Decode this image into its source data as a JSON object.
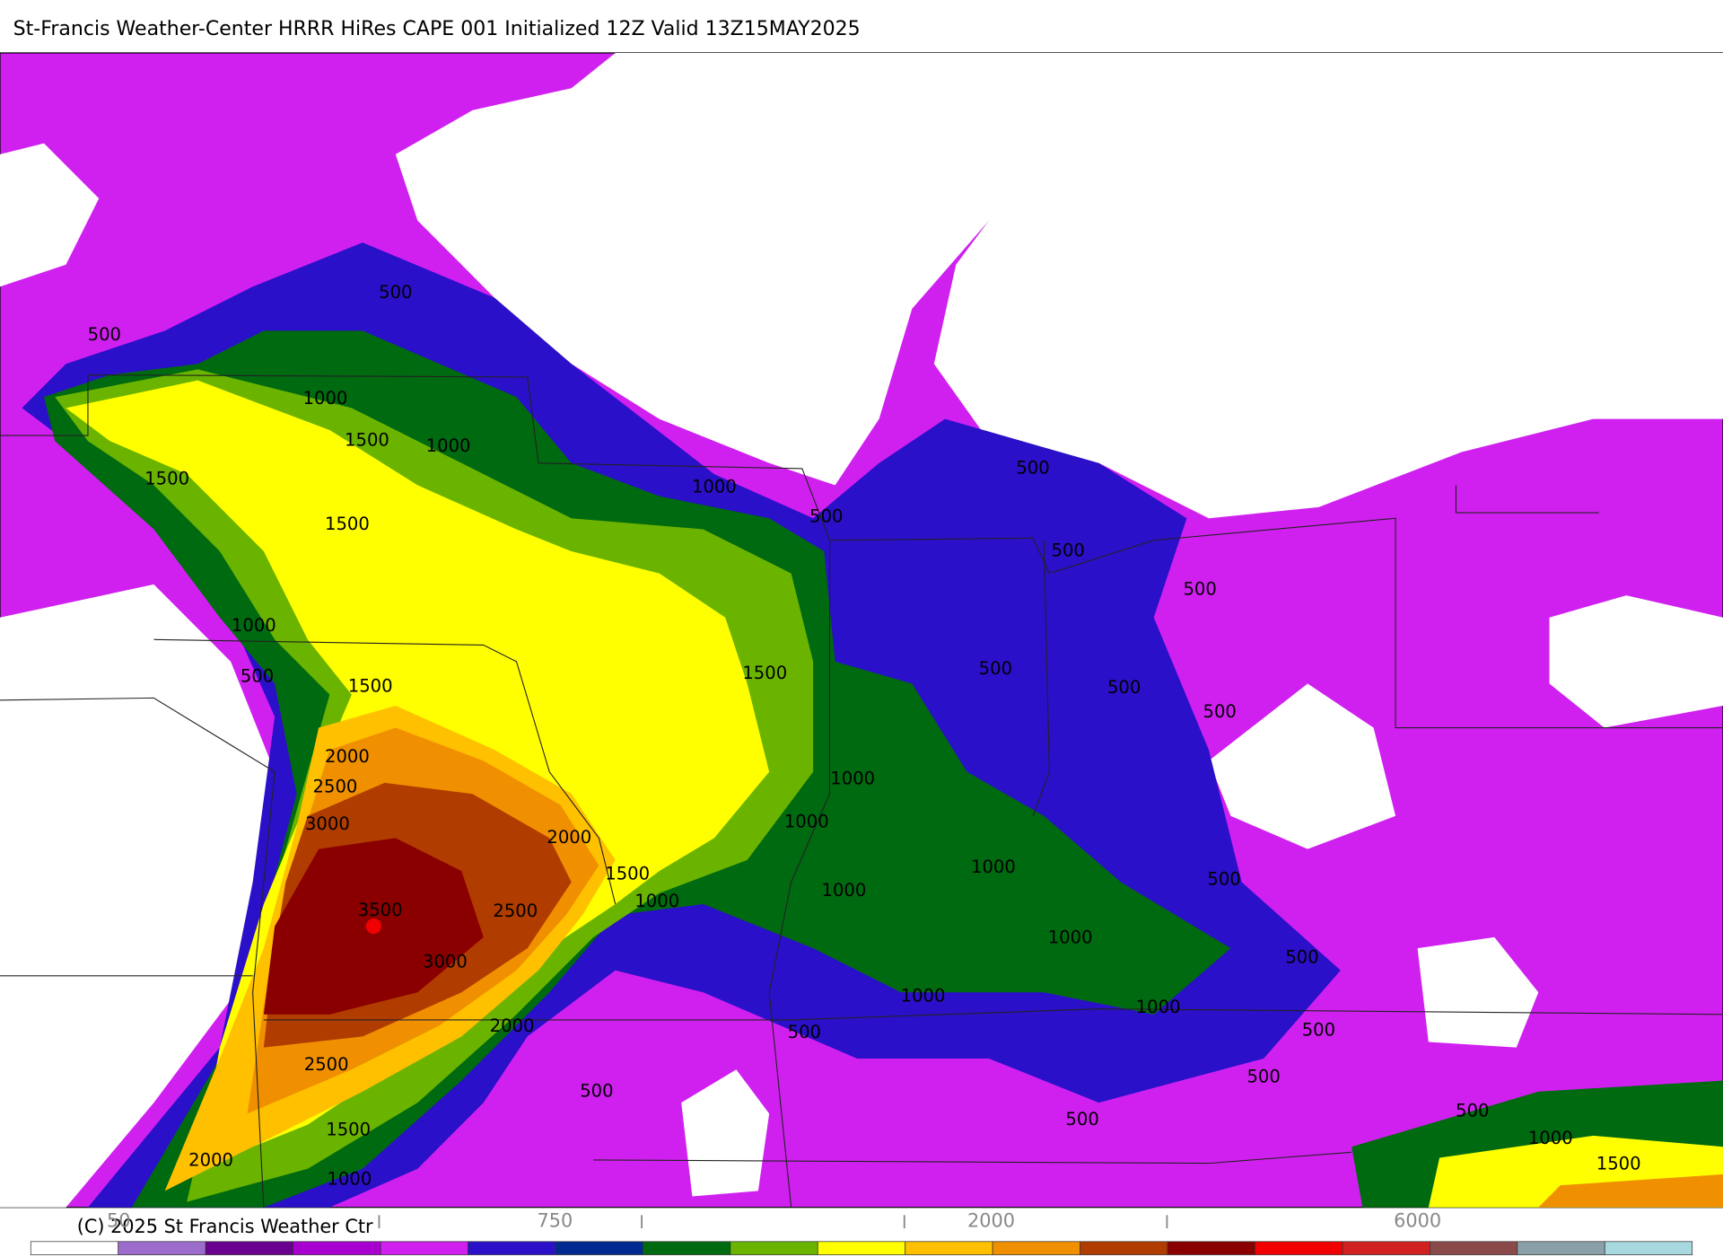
{
  "header": {
    "title": "St-Francis Weather-Center HRRR HiRes CAPE  001 Initialized  12Z Valid 13Z15MAY2025"
  },
  "map": {
    "contour_labels": [
      "500",
      "500",
      "1000",
      "1500",
      "1000",
      "1500",
      "1000",
      "500",
      "500",
      "1500",
      "500",
      "500",
      "1000",
      "500",
      "1500",
      "500",
      "1500",
      "500",
      "500",
      "2000",
      "2500",
      "1000",
      "3000",
      "1000",
      "2000",
      "1500",
      "1000",
      "1000",
      "500",
      "1000",
      "3500",
      "2500",
      "1000",
      "3000",
      "500",
      "1000",
      "1000",
      "2000",
      "500",
      "500",
      "2500",
      "500",
      "500",
      "500",
      "500",
      "1500",
      "1000",
      "2000",
      "1500",
      "1000"
    ]
  },
  "colorbar": {
    "colors": [
      "#ffffff",
      "#9c6ccc",
      "#6a0090",
      "#a800d0",
      "#d020f0",
      "#2a10c8",
      "#002a90",
      "#006a10",
      "#6ab400",
      "#ffff00",
      "#ffc000",
      "#f09000",
      "#b03c00",
      "#8a0000",
      "#f00000",
      "#d02020",
      "#8a4a4a",
      "#8aa0a8",
      "#a8d8e0"
    ],
    "labels": [
      "50",
      "750",
      "2000",
      "6000"
    ]
  },
  "footer": {
    "copyright": "(C) 2025 St Francis Weather Ctr"
  }
}
